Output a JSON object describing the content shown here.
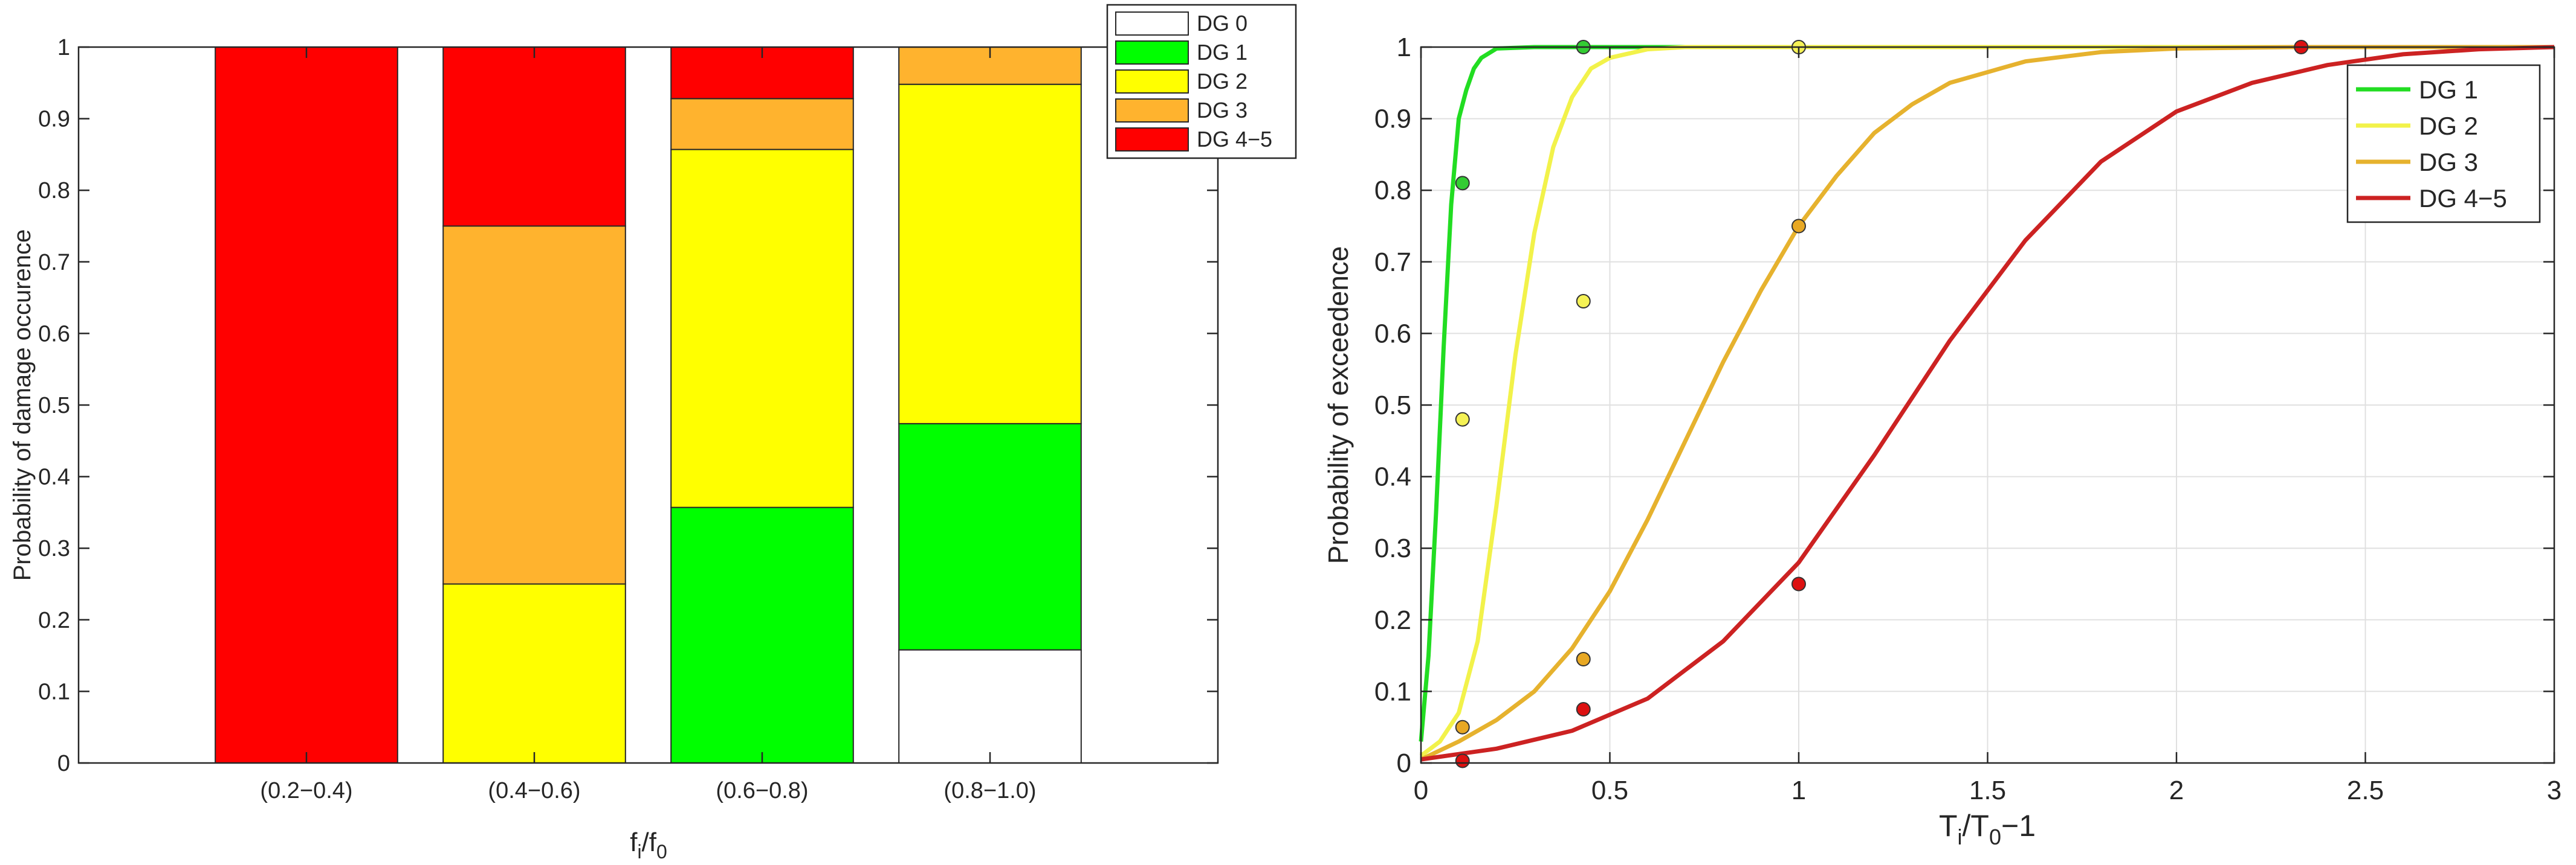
{
  "chart_data": [
    {
      "type": "bar",
      "stacked": true,
      "categories": [
        "(0.2−0.4)",
        "(0.4−0.6)",
        "(0.6−0.8)",
        "(0.8−1.0)"
      ],
      "x_limits_in_category_units": [
        0,
        5
      ],
      "xlabel": {
        "base": "f",
        "sub1": "i",
        "mid": "/f",
        "sub2": "0"
      },
      "ylabel": "Probability of damage occurence",
      "ylim": [
        0,
        1
      ],
      "yticks": [
        0,
        0.1,
        0.2,
        0.3,
        0.4,
        0.5,
        0.6,
        0.7,
        0.8,
        0.9,
        1
      ],
      "yticklabels": [
        "0",
        "0.1",
        "0.2",
        "0.3",
        "0.4",
        "0.5",
        "0.6",
        "0.7",
        "0.8",
        "0.9",
        "1"
      ],
      "grid": false,
      "legend": "top-right",
      "series": [
        {
          "name": "DG 0",
          "color": "#ffffff",
          "values": [
            0,
            0,
            0,
            0.158
          ]
        },
        {
          "name": "DG 1",
          "color": "#00ff00",
          "values": [
            0,
            0,
            0.357,
            0.316
          ]
        },
        {
          "name": "DG 2",
          "color": "#ffff00",
          "values": [
            0,
            0.25,
            0.5,
            0.474
          ]
        },
        {
          "name": "DG 3",
          "color": "#ffb32e",
          "values": [
            0,
            0.5,
            0.071,
            0.052
          ]
        },
        {
          "name": "DG 4−5",
          "color": "#ff0000",
          "values": [
            1,
            0.25,
            0.072,
            0
          ]
        }
      ]
    },
    {
      "type": "line",
      "xlabel": {
        "base": "T",
        "sub1": "i",
        "mid": "/T",
        "sub2": "0",
        "tail": "−1"
      },
      "ylabel": "Probability of exceedence",
      "xlim": [
        0,
        3
      ],
      "ylim": [
        0,
        1
      ],
      "xticks": [
        0,
        0.5,
        1,
        1.5,
        2,
        2.5,
        3
      ],
      "xticklabels": [
        "0",
        "0.5",
        "1",
        "1.5",
        "2",
        "2.5",
        "3"
      ],
      "yticks": [
        0,
        0.1,
        0.2,
        0.3,
        0.4,
        0.5,
        0.6,
        0.7,
        0.8,
        0.9,
        1
      ],
      "yticklabels": [
        "0",
        "0.1",
        "0.2",
        "0.3",
        "0.4",
        "0.5",
        "0.6",
        "0.7",
        "0.8",
        "0.9",
        "1"
      ],
      "grid": true,
      "legend": "top-right",
      "series": [
        {
          "name": "DG 1",
          "color": "#22dd22",
          "marker_color": "#33cc33",
          "x": [
            0,
            0.02,
            0.04,
            0.06,
            0.08,
            0.1,
            0.12,
            0.14,
            0.16,
            0.2,
            0.3,
            0.5,
            3
          ],
          "y": [
            0.03,
            0.15,
            0.35,
            0.58,
            0.78,
            0.9,
            0.94,
            0.97,
            0.985,
            0.998,
            1,
            1,
            1
          ],
          "points_x": [
            0.11,
            0.43
          ],
          "points_y": [
            0.81,
            1
          ]
        },
        {
          "name": "DG 2",
          "color": "#f2f24a",
          "marker_color": "#f5f255",
          "x": [
            0,
            0.05,
            0.1,
            0.15,
            0.2,
            0.25,
            0.3,
            0.35,
            0.4,
            0.45,
            0.5,
            0.6,
            0.7,
            1,
            3
          ],
          "y": [
            0.01,
            0.03,
            0.07,
            0.17,
            0.36,
            0.57,
            0.74,
            0.86,
            0.93,
            0.97,
            0.985,
            0.997,
            1,
            1,
            1
          ],
          "points_x": [
            0.11,
            0.43,
            1
          ],
          "points_y": [
            0.48,
            0.645,
            1
          ]
        },
        {
          "name": "DG 3",
          "color": "#e6b22e",
          "marker_color": "#e8a823",
          "x": [
            0,
            0.1,
            0.2,
            0.3,
            0.4,
            0.5,
            0.6,
            0.7,
            0.8,
            0.9,
            1,
            1.1,
            1.2,
            1.3,
            1.4,
            1.6,
            1.8,
            2,
            2.3,
            3
          ],
          "y": [
            0.005,
            0.03,
            0.06,
            0.1,
            0.16,
            0.24,
            0.34,
            0.45,
            0.56,
            0.66,
            0.75,
            0.82,
            0.88,
            0.92,
            0.95,
            0.98,
            0.993,
            0.998,
            1,
            1
          ],
          "points_x": [
            0.11,
            0.43,
            1
          ],
          "points_y": [
            0.05,
            0.145,
            0.75
          ]
        },
        {
          "name": "DG 4−5",
          "color": "#cc2222",
          "marker_color": "#dd1111",
          "x": [
            0,
            0.2,
            0.4,
            0.6,
            0.8,
            1,
            1.2,
            1.4,
            1.6,
            1.8,
            2,
            2.2,
            2.4,
            2.6,
            2.8,
            3
          ],
          "y": [
            0.005,
            0.02,
            0.045,
            0.09,
            0.17,
            0.28,
            0.43,
            0.59,
            0.73,
            0.84,
            0.91,
            0.95,
            0.975,
            0.99,
            0.997,
            1
          ],
          "points_x": [
            0.11,
            0.43,
            1,
            2.33
          ],
          "points_y": [
            0.003,
            0.075,
            0.25,
            1
          ]
        }
      ]
    }
  ]
}
